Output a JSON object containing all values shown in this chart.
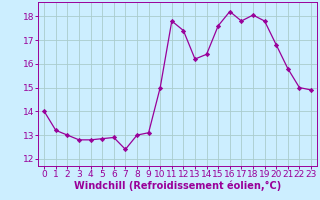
{
  "x": [
    0,
    1,
    2,
    3,
    4,
    5,
    6,
    7,
    8,
    9,
    10,
    11,
    12,
    13,
    14,
    15,
    16,
    17,
    18,
    19,
    20,
    21,
    22,
    23
  ],
  "y": [
    14.0,
    13.2,
    13.0,
    12.8,
    12.8,
    12.85,
    12.9,
    12.4,
    13.0,
    13.1,
    15.0,
    17.8,
    17.4,
    16.2,
    16.4,
    17.6,
    18.2,
    17.8,
    18.05,
    17.8,
    16.8,
    15.8,
    15.0,
    14.9
  ],
  "line_color": "#990099",
  "marker": "D",
  "marker_size": 2.2,
  "bg_color": "#cceeff",
  "grid_color": "#aacccc",
  "xlabel": "Windchill (Refroidissement éolien,°C)",
  "xlabel_fontsize": 7,
  "tick_fontsize": 6.5,
  "ylim": [
    11.7,
    18.6
  ],
  "xlim": [
    -0.5,
    23.5
  ],
  "yticks": [
    12,
    13,
    14,
    15,
    16,
    17,
    18
  ],
  "xticks": [
    0,
    1,
    2,
    3,
    4,
    5,
    6,
    7,
    8,
    9,
    10,
    11,
    12,
    13,
    14,
    15,
    16,
    17,
    18,
    19,
    20,
    21,
    22,
    23
  ]
}
